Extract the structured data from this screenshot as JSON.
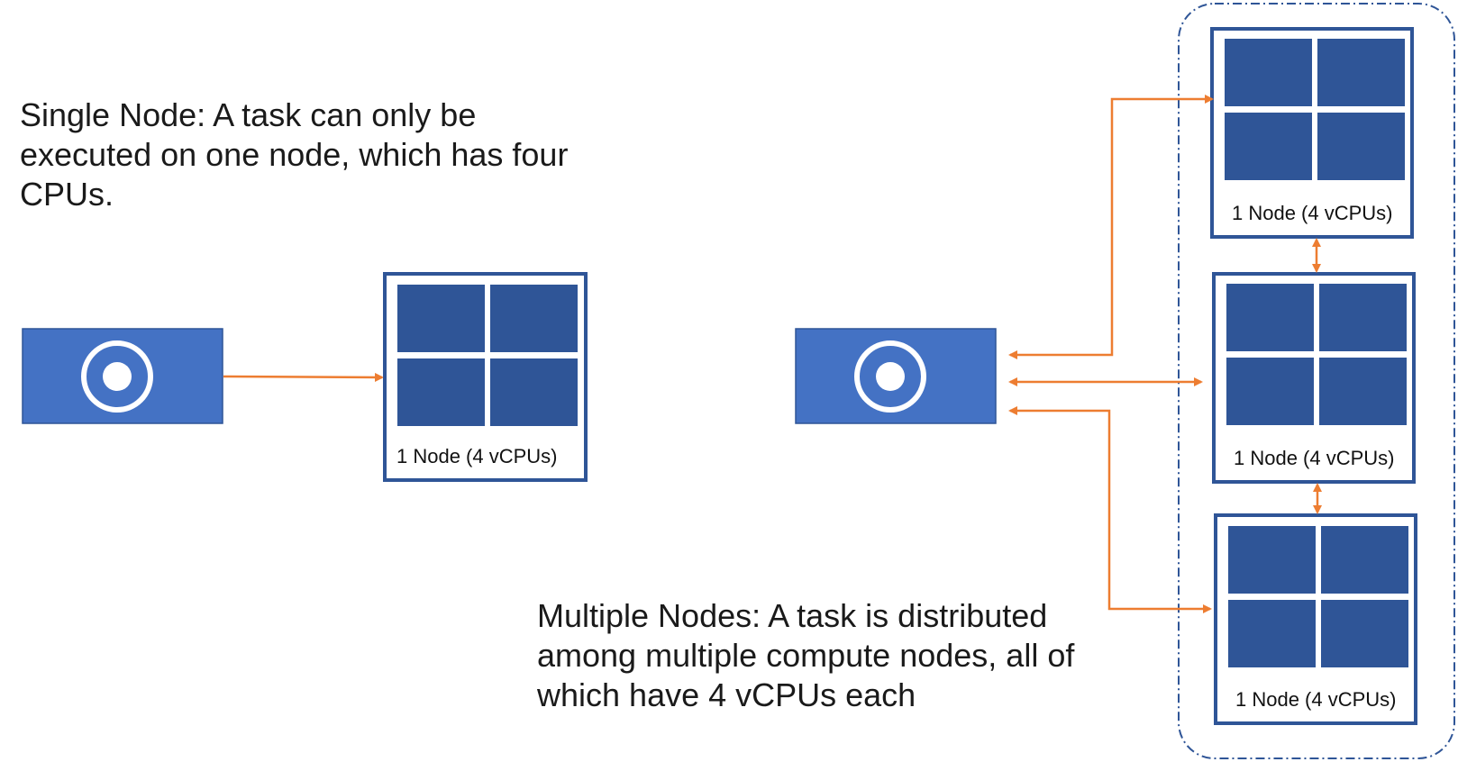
{
  "single_node": {
    "caption_lines": [
      "Single Node: A task can only be",
      "executed on one node, which has four",
      "CPUs."
    ],
    "node_label": "1 Node (4 vCPUs)"
  },
  "multiple_nodes": {
    "caption_lines": [
      "Multiple Nodes: A task is distributed",
      "among multiple compute nodes, all of",
      "which have 4 vCPUs each"
    ],
    "node_labels": [
      "1 Node (4 vCPUs)",
      "1 Node (4 vCPUs)",
      "1 Node (4 vCPUs)"
    ]
  },
  "colors": {
    "task_fill": "#4472c4",
    "cpu_fill": "#2f5597",
    "node_border": "#2f5597",
    "arrow": "#ed7d31",
    "cluster_border": "#2f5597"
  },
  "icons": {
    "task": "target-icon",
    "cpu": "cpu-core-icon"
  }
}
